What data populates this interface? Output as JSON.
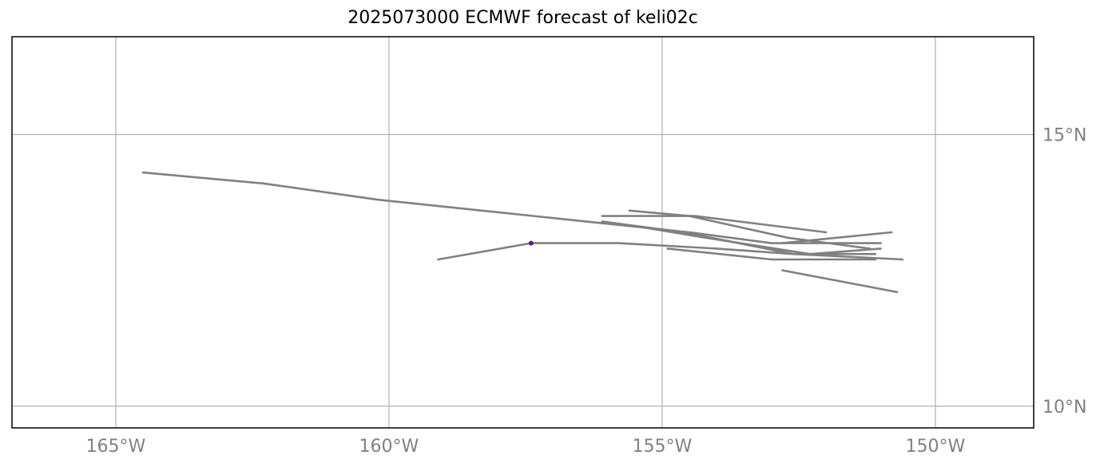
{
  "title": "2025073000 ECMWF forecast of keli02c",
  "map": {
    "lon_range": [
      -166.9,
      -148.2
    ],
    "lat_range": [
      9.6,
      16.8
    ],
    "gridlines": true,
    "colors": {
      "track": "#808080",
      "grid": "#b0b0b0",
      "frame": "#000000",
      "label": "#808080",
      "marker": "#5a1a8a"
    }
  },
  "lon_ticks": [
    {
      "value": -165,
      "label": "165°W"
    },
    {
      "value": -160,
      "label": "160°W"
    },
    {
      "value": -155,
      "label": "155°W"
    },
    {
      "value": -150,
      "label": "150°W"
    }
  ],
  "lat_ticks": [
    {
      "value": 15,
      "label": "15°N"
    },
    {
      "value": 10,
      "label": "10°N"
    }
  ],
  "current_position": {
    "lon": -157.4,
    "lat": 13.0
  },
  "tracks": [
    [
      [
        -157.4,
        13.0
      ],
      [
        -159.1,
        12.7
      ]
    ],
    [
      [
        -157.4,
        13.0
      ],
      [
        -155.8,
        13.0
      ],
      [
        -154.0,
        12.9
      ],
      [
        -152.6,
        12.8
      ],
      [
        -150.6,
        12.7
      ]
    ],
    [
      [
        -164.5,
        14.3
      ],
      [
        -162.3,
        14.1
      ],
      [
        -160.2,
        13.8
      ],
      [
        -158.3,
        13.6
      ],
      [
        -156.4,
        13.4
      ],
      [
        -154.5,
        13.2
      ],
      [
        -153.0,
        13.0
      ],
      [
        -151.0,
        13.0
      ]
    ],
    [
      [
        -156.1,
        13.4
      ],
      [
        -154.6,
        13.2
      ],
      [
        -152.6,
        12.8
      ],
      [
        -151.1,
        12.8
      ]
    ],
    [
      [
        -155.6,
        13.6
      ],
      [
        -154.5,
        13.5
      ],
      [
        -152.7,
        13.1
      ],
      [
        -151.2,
        12.9
      ]
    ],
    [
      [
        -156.1,
        13.5
      ],
      [
        -154.4,
        13.5
      ],
      [
        -152.0,
        13.2
      ]
    ],
    [
      [
        -155.4,
        13.3
      ],
      [
        -154.2,
        13.1
      ],
      [
        -152.3,
        12.8
      ],
      [
        -151.0,
        12.9
      ]
    ],
    [
      [
        -154.9,
        12.9
      ],
      [
        -153.0,
        12.7
      ],
      [
        -151.1,
        12.7
      ]
    ],
    [
      [
        -152.8,
        13.0
      ],
      [
        -150.8,
        13.2
      ]
    ],
    [
      [
        -152.8,
        12.5
      ],
      [
        -150.7,
        12.1
      ]
    ]
  ]
}
